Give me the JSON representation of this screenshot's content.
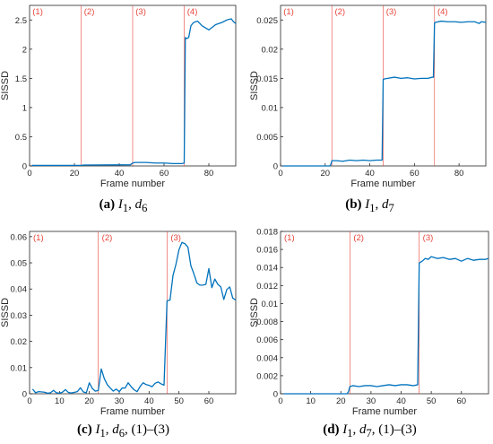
{
  "chart_data": [
    {
      "type": "line",
      "caption": {
        "tag": "(a)",
        "var": "I",
        "var_sub": "1",
        "sep": ", ",
        "d": "d",
        "d_sub": "6",
        "suffix": ""
      },
      "xlabel": "Frame number",
      "ylabel": "SISSD",
      "xlim": [
        0,
        92
      ],
      "ylim": [
        0,
        2.75
      ],
      "xticks": [
        0,
        20,
        40,
        60,
        80
      ],
      "yticks": [
        0,
        0.5,
        1,
        1.5,
        2,
        2.5
      ],
      "ytick_labels": [
        "0",
        "0.5",
        "1",
        "1.5",
        "2",
        "2.5"
      ],
      "region_lines": [
        23,
        46,
        69
      ],
      "region_labels": [
        {
          "text": "(1)",
          "x": 0.5
        },
        {
          "text": "(2)",
          "x": 23.5
        },
        {
          "text": "(3)",
          "x": 46.5
        },
        {
          "text": "(4)",
          "x": 69.5
        }
      ],
      "series": [
        {
          "x": [
            1,
            23,
            24,
            45,
            46,
            47,
            49,
            52,
            56,
            60,
            64,
            68,
            69,
            69.5,
            70,
            71,
            72,
            73,
            74,
            75,
            77,
            80,
            83,
            86,
            88,
            90,
            91,
            92
          ],
          "y": [
            0.01,
            0.01,
            0.015,
            0.02,
            0.05,
            0.06,
            0.06,
            0.06,
            0.05,
            0.05,
            0.04,
            0.04,
            0.05,
            2.2,
            2.18,
            2.2,
            2.4,
            2.45,
            2.47,
            2.48,
            2.4,
            2.33,
            2.42,
            2.46,
            2.5,
            2.52,
            2.47,
            2.44
          ]
        }
      ]
    },
    {
      "type": "line",
      "caption": {
        "tag": "(b)",
        "var": "I",
        "var_sub": "1",
        "sep": ", ",
        "d": "d",
        "d_sub": "7",
        "suffix": ""
      },
      "xlabel": "Frame number",
      "ylabel": "SISSD",
      "xlim": [
        0,
        92
      ],
      "ylim": [
        0,
        0.0275
      ],
      "xticks": [
        0,
        20,
        40,
        60,
        80
      ],
      "yticks": [
        0,
        0.005,
        0.01,
        0.015,
        0.02,
        0.025
      ],
      "ytick_labels": [
        "0",
        "0.005",
        "0.01",
        "0.015",
        "0.02",
        "0.025"
      ],
      "region_lines": [
        23,
        46,
        69
      ],
      "region_labels": [
        {
          "text": "(1)",
          "x": 0.5
        },
        {
          "text": "(2)",
          "x": 23.5
        },
        {
          "text": "(3)",
          "x": 46.5
        },
        {
          "text": "(4)",
          "x": 69.5
        }
      ],
      "series": [
        {
          "x": [
            1,
            22,
            22.5,
            23,
            25,
            28,
            31,
            34,
            37,
            40,
            43,
            45,
            45.5,
            46,
            46.5,
            48,
            51,
            54,
            57,
            60,
            63,
            66,
            68,
            68.5,
            69,
            69.5,
            72,
            75,
            78,
            81,
            84,
            87,
            89,
            90,
            92
          ],
          "y": [
            0,
            0,
            0.0002,
            0.0009,
            0.0009,
            0.0008,
            0.001,
            0.0009,
            0.001,
            0.0009,
            0.001,
            0.001,
            0.001,
            0.0148,
            0.0149,
            0.015,
            0.0152,
            0.015,
            0.0151,
            0.0149,
            0.015,
            0.015,
            0.0152,
            0.0152,
            0.0245,
            0.0246,
            0.0248,
            0.0247,
            0.0247,
            0.0246,
            0.0247,
            0.0247,
            0.0244,
            0.0247,
            0.0246
          ]
        }
      ]
    },
    {
      "type": "line",
      "caption": {
        "tag": "(c)",
        "var": "I",
        "var_sub": "1",
        "sep": ", ",
        "d": "d",
        "d_sub": "6",
        "suffix": ", (1)–(3)"
      },
      "xlabel": "Frame number",
      "ylabel": "SISSD",
      "xlim": [
        0,
        69
      ],
      "ylim": [
        0,
        0.062
      ],
      "xticks": [
        0,
        10,
        20,
        30,
        40,
        50,
        60
      ],
      "yticks": [
        0,
        0.01,
        0.02,
        0.03,
        0.04,
        0.05,
        0.06
      ],
      "ytick_labels": [
        "0",
        "0.01",
        "0.02",
        "0.03",
        "0.04",
        "0.05",
        "0.06"
      ],
      "region_lines": [
        23,
        46
      ],
      "region_labels": [
        {
          "text": "(1)",
          "x": 0.6
        },
        {
          "text": "(2)",
          "x": 23.6
        },
        {
          "text": "(3)",
          "x": 46.6
        }
      ],
      "series": [
        {
          "x": [
            1,
            2,
            3,
            5,
            6,
            7,
            8,
            9,
            10,
            11,
            12,
            13,
            14,
            16,
            17,
            18,
            19,
            20,
            21,
            22,
            23,
            24,
            25,
            26,
            27,
            28,
            29,
            30,
            31,
            32,
            33,
            34,
            35,
            36,
            37,
            38,
            39,
            40,
            41,
            42,
            43,
            44,
            45,
            46,
            47,
            48,
            49,
            50,
            51,
            52,
            53,
            54,
            55,
            56,
            57,
            58,
            59,
            60,
            61,
            62,
            63,
            64,
            65,
            66,
            67,
            68,
            69
          ],
          "y": [
            0.0018,
            0.0004,
            0.0008,
            0.0006,
            0.0002,
            0.0004,
            0.0013,
            0.0004,
            0.0002,
            0.0006,
            0.0016,
            0.0005,
            0.0003,
            0.0008,
            0.0023,
            0.0007,
            0.0004,
            0.0042,
            0.002,
            0.001,
            0.0013,
            0.0095,
            0.0058,
            0.0035,
            0.0022,
            0.001,
            0.0018,
            0.0008,
            0.0022,
            0.0022,
            0.0042,
            0.0027,
            0.0015,
            0.0008,
            0.0028,
            0.0042,
            0.0035,
            0.0032,
            0.0027,
            0.004,
            0.0045,
            0.0038,
            0.0033,
            0.0355,
            0.0358,
            0.0452,
            0.0495,
            0.055,
            0.0578,
            0.0573,
            0.056,
            0.0488,
            0.0458,
            0.0423,
            0.0415,
            0.0415,
            0.0418,
            0.0478,
            0.0405,
            0.0438,
            0.0418,
            0.0408,
            0.036,
            0.0398,
            0.0408,
            0.0365,
            0.0358
          ]
        }
      ]
    },
    {
      "type": "line",
      "caption": {
        "tag": "(d)",
        "var": "I",
        "var_sub": "1",
        "sep": ", ",
        "d": "d",
        "d_sub": "7",
        "suffix": ", (1)–(3)"
      },
      "xlabel": "Frame number",
      "ylabel": "SISSD",
      "xlim": [
        0,
        69
      ],
      "ylim": [
        0,
        0.018
      ],
      "xticks": [
        0,
        10,
        20,
        30,
        40,
        50,
        60
      ],
      "yticks": [
        0,
        0.002,
        0.004,
        0.006,
        0.008,
        0.01,
        0.012,
        0.014,
        0.016,
        0.018
      ],
      "ytick_labels": [
        "0",
        "0.002",
        "0.004",
        "0.006",
        "0.008",
        "0.01",
        "0.012",
        "0.014",
        "0.016",
        "0.018"
      ],
      "region_lines": [
        23,
        46
      ],
      "region_labels": [
        {
          "text": "(1)",
          "x": 0.6
        },
        {
          "text": "(2)",
          "x": 23.6
        },
        {
          "text": "(3)",
          "x": 46.6
        }
      ],
      "series": [
        {
          "x": [
            1,
            22,
            22.5,
            23,
            24,
            26,
            28,
            30,
            32,
            34,
            36,
            38,
            40,
            42,
            44,
            45.5,
            46,
            47,
            48,
            49,
            50,
            52,
            54,
            56,
            58,
            60,
            62,
            64,
            66,
            68,
            69
          ],
          "y": [
            0,
            0,
            0.0002,
            0.0008,
            0.0009,
            0.0008,
            0.0009,
            0.0009,
            0.0008,
            0.0009,
            0.001,
            0.0009,
            0.001,
            0.001,
            0.0009,
            0.001,
            0.0145,
            0.0147,
            0.015,
            0.0149,
            0.0152,
            0.015,
            0.0151,
            0.0149,
            0.015,
            0.0147,
            0.015,
            0.0148,
            0.0149,
            0.0149,
            0.015
          ]
        }
      ]
    }
  ],
  "colors": {
    "line": "#0072bd",
    "region": "#e8443a",
    "axis": "#262626"
  }
}
